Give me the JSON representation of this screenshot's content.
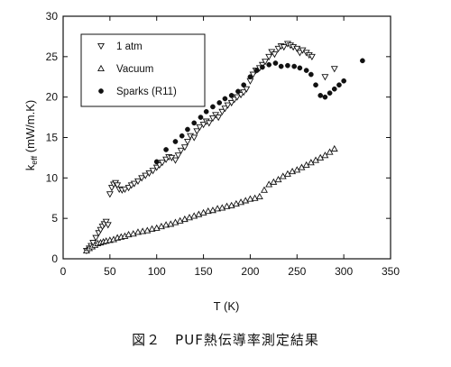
{
  "caption": "図２　PUF熱伝導率測定結果",
  "chart_data": {
    "type": "scatter",
    "xlabel": "T (K)",
    "ylabel": "k_eff (mW/m.K)",
    "ylabel_main": "k",
    "ylabel_sub": "eff",
    "ylabel_rest": " (mW/m.K)",
    "xlim": [
      0,
      350
    ],
    "ylim": [
      0,
      30
    ],
    "xticks": [
      0,
      50,
      100,
      150,
      200,
      250,
      300,
      350
    ],
    "yticks": [
      0,
      5,
      10,
      15,
      20,
      25,
      30
    ],
    "grid": false,
    "legend_position": "top-left",
    "series": [
      {
        "name": "1 atm",
        "marker": "triangle-down-open",
        "x": [
          25,
          28,
          30,
          32,
          35,
          38,
          40,
          42,
          44,
          46,
          48,
          50,
          52,
          54,
          56,
          58,
          60,
          63,
          66,
          70,
          73,
          76,
          80,
          84,
          88,
          92,
          96,
          100,
          103,
          106,
          110,
          113,
          116,
          120,
          123,
          126,
          130,
          133,
          136,
          140,
          143,
          146,
          150,
          153,
          156,
          160,
          163,
          166,
          170,
          173,
          176,
          180,
          183,
          186,
          190,
          193,
          196,
          200,
          203,
          206,
          210,
          213,
          216,
          220,
          223,
          226,
          230,
          233,
          236,
          240,
          243,
          246,
          250,
          253,
          256,
          260,
          263,
          266,
          280,
          290
        ],
        "y": [
          1.0,
          1.3,
          1.6,
          2.0,
          2.6,
          3.2,
          3.6,
          4.0,
          4.3,
          4.6,
          4.2,
          8.0,
          8.8,
          9.2,
          9.4,
          9.1,
          8.6,
          8.5,
          8.6,
          8.8,
          9.1,
          9.3,
          9.6,
          10.0,
          10.3,
          10.6,
          10.9,
          11.3,
          11.6,
          11.9,
          12.3,
          12.6,
          12.5,
          12.2,
          12.8,
          13.4,
          13.8,
          14.5,
          15.2,
          15.0,
          15.8,
          16.3,
          16.6,
          17.0,
          16.8,
          17.4,
          17.8,
          17.5,
          18.2,
          18.6,
          19.0,
          19.3,
          19.7,
          20.0,
          20.3,
          20.6,
          21.0,
          22.0,
          22.8,
          23.3,
          23.6,
          24.0,
          24.4,
          25.0,
          25.6,
          25.3,
          26.0,
          26.3,
          26.2,
          26.6,
          26.4,
          26.2,
          26.0,
          25.5,
          25.8,
          25.5,
          25.2,
          25.0,
          22.5,
          23.5
        ],
        "color": "#111111"
      },
      {
        "name": "Vacuum",
        "marker": "triangle-up-open",
        "x": [
          25,
          28,
          31,
          34,
          37,
          40,
          43,
          46,
          50,
          54,
          58,
          62,
          66,
          70,
          75,
          80,
          85,
          90,
          95,
          100,
          105,
          110,
          115,
          120,
          125,
          130,
          135,
          140,
          145,
          150,
          155,
          160,
          165,
          170,
          175,
          180,
          185,
          190,
          195,
          200,
          205,
          210,
          215,
          220,
          225,
          230,
          235,
          240,
          245,
          250,
          255,
          260,
          265,
          270,
          275,
          280,
          285,
          290
        ],
        "y": [
          1.0,
          1.3,
          1.5,
          1.7,
          1.9,
          2.0,
          2.1,
          2.2,
          2.3,
          2.4,
          2.6,
          2.7,
          2.8,
          3.0,
          3.1,
          3.3,
          3.4,
          3.5,
          3.7,
          3.8,
          4.0,
          4.2,
          4.3,
          4.5,
          4.7,
          4.9,
          5.1,
          5.3,
          5.5,
          5.7,
          5.9,
          6.0,
          6.2,
          6.3,
          6.5,
          6.6,
          6.8,
          7.0,
          7.2,
          7.4,
          7.5,
          7.7,
          8.5,
          9.2,
          9.5,
          9.8,
          10.2,
          10.5,
          10.8,
          11.0,
          11.3,
          11.6,
          11.9,
          12.2,
          12.5,
          12.8,
          13.2,
          13.6
        ],
        "color": "#111111"
      },
      {
        "name": "Sparks (R11)",
        "marker": "circle-filled",
        "x": [
          100,
          110,
          120,
          127,
          133,
          140,
          147,
          153,
          160,
          167,
          173,
          180,
          187,
          193,
          200,
          207,
          213,
          220,
          227,
          233,
          240,
          247,
          253,
          260,
          265,
          270,
          275,
          280,
          285,
          290,
          295,
          300,
          320
        ],
        "y": [
          12.0,
          13.5,
          14.5,
          15.2,
          16.0,
          16.8,
          17.5,
          18.2,
          18.8,
          19.3,
          19.8,
          20.2,
          20.7,
          21.5,
          22.5,
          23.3,
          23.7,
          24.0,
          24.2,
          23.8,
          23.9,
          23.8,
          23.6,
          23.3,
          22.8,
          21.5,
          20.2,
          20.0,
          20.5,
          21.0,
          21.5,
          22.0,
          24.5
        ],
        "color": "#111111"
      }
    ]
  }
}
